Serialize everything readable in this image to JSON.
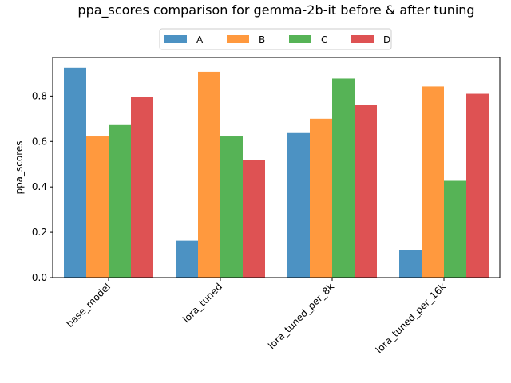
{
  "chart_data": {
    "type": "bar",
    "title": "ppa_scores comparison for gemma-2b-it before & after tuning",
    "xlabel": "",
    "ylabel": "ppa_scores",
    "categories": [
      "base_model",
      "lora_tuned",
      "lora_tuned_per_8k",
      "lora_tuned_per_16k"
    ],
    "series": [
      {
        "name": "A",
        "color": "#1f77b4",
        "values": [
          0.925,
          0.163,
          0.637,
          0.123
        ]
      },
      {
        "name": "B",
        "color": "#ff7f0e",
        "values": [
          0.622,
          0.907,
          0.7,
          0.842
        ]
      },
      {
        "name": "C",
        "color": "#2ca02c",
        "values": [
          0.672,
          0.622,
          0.877,
          0.427
        ]
      },
      {
        "name": "D",
        "color": "#d62728",
        "values": [
          0.797,
          0.52,
          0.76,
          0.81
        ]
      }
    ],
    "yticks": [
      0.0,
      0.2,
      0.4,
      0.6,
      0.8
    ],
    "ylim": [
      0,
      0.97
    ],
    "bar_alpha": 0.8,
    "legend_position": "top-center, above plot, 4 columns",
    "grid": false
  }
}
